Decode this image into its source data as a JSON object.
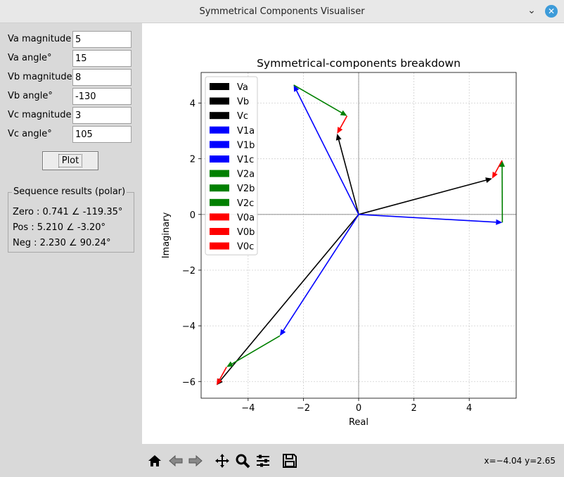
{
  "window": {
    "title": "Symmetrical Components Visualiser"
  },
  "form": {
    "fields": [
      {
        "label": "Va magnitude",
        "value": "5"
      },
      {
        "label": "Va angle°",
        "value": "15"
      },
      {
        "label": "Vb magnitude",
        "value": "8"
      },
      {
        "label": "Vb angle°",
        "value": "-130"
      },
      {
        "label": "Vc magnitude",
        "value": "3"
      },
      {
        "label": "Vc angle°",
        "value": "105"
      }
    ],
    "plot_button": "Plot"
  },
  "results": {
    "title": "Sequence results (polar)",
    "zero": "Zero  : 0.741 ∠ -119.35°",
    "pos": "Pos   : 5.210 ∠ -3.20°",
    "neg": "Neg   : 2.230 ∠ 90.24°"
  },
  "toolbar": {
    "icons": [
      "home-icon",
      "back-icon",
      "forward-icon",
      "pan-icon",
      "zoom-icon",
      "configure-icon",
      "save-icon"
    ],
    "coords": "x=−4.04 y=2.65"
  },
  "chart_data": {
    "type": "vector",
    "title": "Symmetrical-components breakdown",
    "xlabel": "Real",
    "ylabel": "Imaginary",
    "xlim": [
      -5.7,
      5.7
    ],
    "ylim": [
      -6.6,
      5.1
    ],
    "xticks": [
      -4,
      -2,
      0,
      2,
      4
    ],
    "yticks": [
      -6,
      -4,
      -2,
      0,
      2,
      4
    ],
    "tick_labels": {
      "x": [
        "−4",
        "−2",
        "0",
        "2",
        "4"
      ],
      "y": [
        "−6",
        "−4",
        "−2",
        "0",
        "2",
        "4"
      ]
    },
    "grid": true,
    "legend_position": "top-left",
    "colors": {
      "phase": "#000000",
      "positive": "#0000ff",
      "negative": "#008000",
      "zero": "#ff0000"
    },
    "legend": [
      {
        "label": "Va",
        "color": "#000000"
      },
      {
        "label": "Vb",
        "color": "#000000"
      },
      {
        "label": "Vc",
        "color": "#000000"
      },
      {
        "label": "V1a",
        "color": "#0000ff"
      },
      {
        "label": "V1b",
        "color": "#0000ff"
      },
      {
        "label": "V1c",
        "color": "#0000ff"
      },
      {
        "label": "V2a",
        "color": "#008000"
      },
      {
        "label": "V2b",
        "color": "#008000"
      },
      {
        "label": "V2c",
        "color": "#008000"
      },
      {
        "label": "V0a",
        "color": "#ff0000"
      },
      {
        "label": "V0b",
        "color": "#ff0000"
      },
      {
        "label": "V0c",
        "color": "#ff0000"
      }
    ],
    "arrows": [
      {
        "name": "Va",
        "from": [
          0,
          0
        ],
        "to": [
          4.83,
          1.29
        ],
        "color": "#000000"
      },
      {
        "name": "Vb",
        "from": [
          0,
          0
        ],
        "to": [
          -5.14,
          -6.13
        ],
        "color": "#000000"
      },
      {
        "name": "Vc",
        "from": [
          0,
          0
        ],
        "to": [
          -0.78,
          2.9
        ],
        "color": "#000000"
      },
      {
        "name": "V1a",
        "from": [
          0,
          0
        ],
        "to": [
          5.2,
          -0.29
        ],
        "color": "#0000ff"
      },
      {
        "name": "V1b",
        "from": [
          0,
          0
        ],
        "to": [
          -2.85,
          -4.36
        ],
        "color": "#0000ff"
      },
      {
        "name": "V1c",
        "from": [
          0,
          0
        ],
        "to": [
          -2.35,
          4.65
        ],
        "color": "#0000ff"
      },
      {
        "name": "V2a",
        "from": [
          5.2,
          -0.29
        ],
        "to": [
          5.19,
          1.94
        ],
        "color": "#008000"
      },
      {
        "name": "V2b",
        "from": [
          -2.85,
          -4.36
        ],
        "to": [
          -4.78,
          -5.48
        ],
        "color": "#008000"
      },
      {
        "name": "V2c",
        "from": [
          -2.35,
          4.65
        ],
        "to": [
          -0.42,
          3.54
        ],
        "color": "#008000"
      },
      {
        "name": "V0a",
        "from": [
          5.19,
          1.94
        ],
        "to": [
          4.83,
          1.29
        ],
        "color": "#ff0000"
      },
      {
        "name": "V0b",
        "from": [
          -4.78,
          -5.48
        ],
        "to": [
          -5.14,
          -6.13
        ],
        "color": "#ff0000"
      },
      {
        "name": "V0c",
        "from": [
          -0.42,
          3.54
        ],
        "to": [
          -0.78,
          2.9
        ],
        "color": "#ff0000"
      }
    ]
  }
}
